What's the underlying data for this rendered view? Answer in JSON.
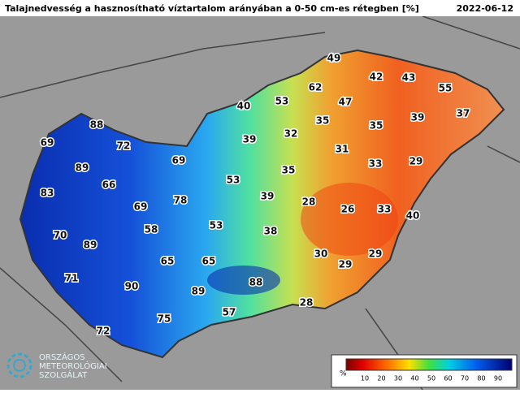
{
  "header": {
    "title": "Talajnedvesség a hasznosítható víztartalom arányában a 0-50 cm-es rétegben [%]",
    "date": "2022-06-12"
  },
  "stations": [
    49,
    42,
    43,
    55,
    62,
    47,
    53,
    40,
    37,
    39,
    35,
    35,
    32,
    39,
    31,
    33,
    29,
    35,
    88,
    69,
    72,
    69,
    89,
    66,
    53,
    39,
    83,
    78,
    69,
    28,
    26,
    33,
    40,
    53,
    58,
    38,
    70,
    89,
    30,
    29,
    29,
    65,
    65,
    71,
    90,
    88,
    89,
    28,
    57,
    75,
    72
  ],
  "legend": {
    "unit": "%",
    "ticks": [
      10,
      20,
      30,
      40,
      50,
      60,
      70,
      80,
      90
    ]
  },
  "logo": {
    "lines": [
      "ORSZÁGOS",
      "METEOROLÓGIAI",
      "SZOLGÁLAT"
    ]
  }
}
